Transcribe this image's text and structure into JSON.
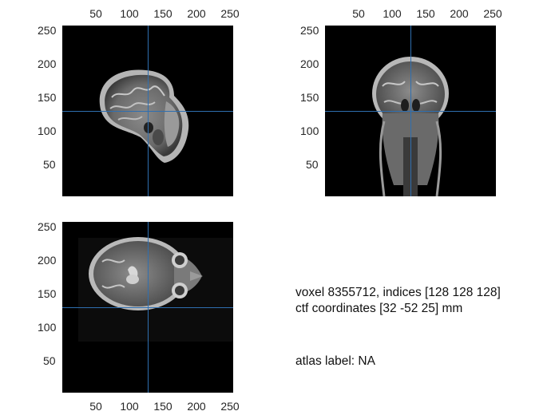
{
  "views": [
    {
      "id": "sagittal",
      "x_ticks": [
        "50",
        "100",
        "150",
        "200",
        "250"
      ],
      "y_ticks": [
        "250",
        "200",
        "150",
        "100",
        "50"
      ],
      "x_axis_position": "top"
    },
    {
      "id": "coronal",
      "x_ticks": [
        "50",
        "100",
        "150",
        "200",
        "250"
      ],
      "y_ticks": [
        "250",
        "200",
        "150",
        "100",
        "50"
      ],
      "x_axis_position": "top"
    },
    {
      "id": "axial",
      "x_ticks": [
        "50",
        "100",
        "150",
        "200",
        "250"
      ],
      "y_ticks": [
        "250",
        "200",
        "150",
        "100",
        "50"
      ],
      "x_axis_position": "bottom"
    }
  ],
  "crosshair": {
    "color": "#2f6fb0",
    "x_value": 128,
    "y_value": 128
  },
  "axis_range": [
    0,
    256
  ],
  "info": {
    "voxel_line": "voxel 8355712, indices [128 128 128]",
    "ctf_line": "ctf coordinates [32 -52 25] mm",
    "atlas_line": "atlas label: NA"
  }
}
